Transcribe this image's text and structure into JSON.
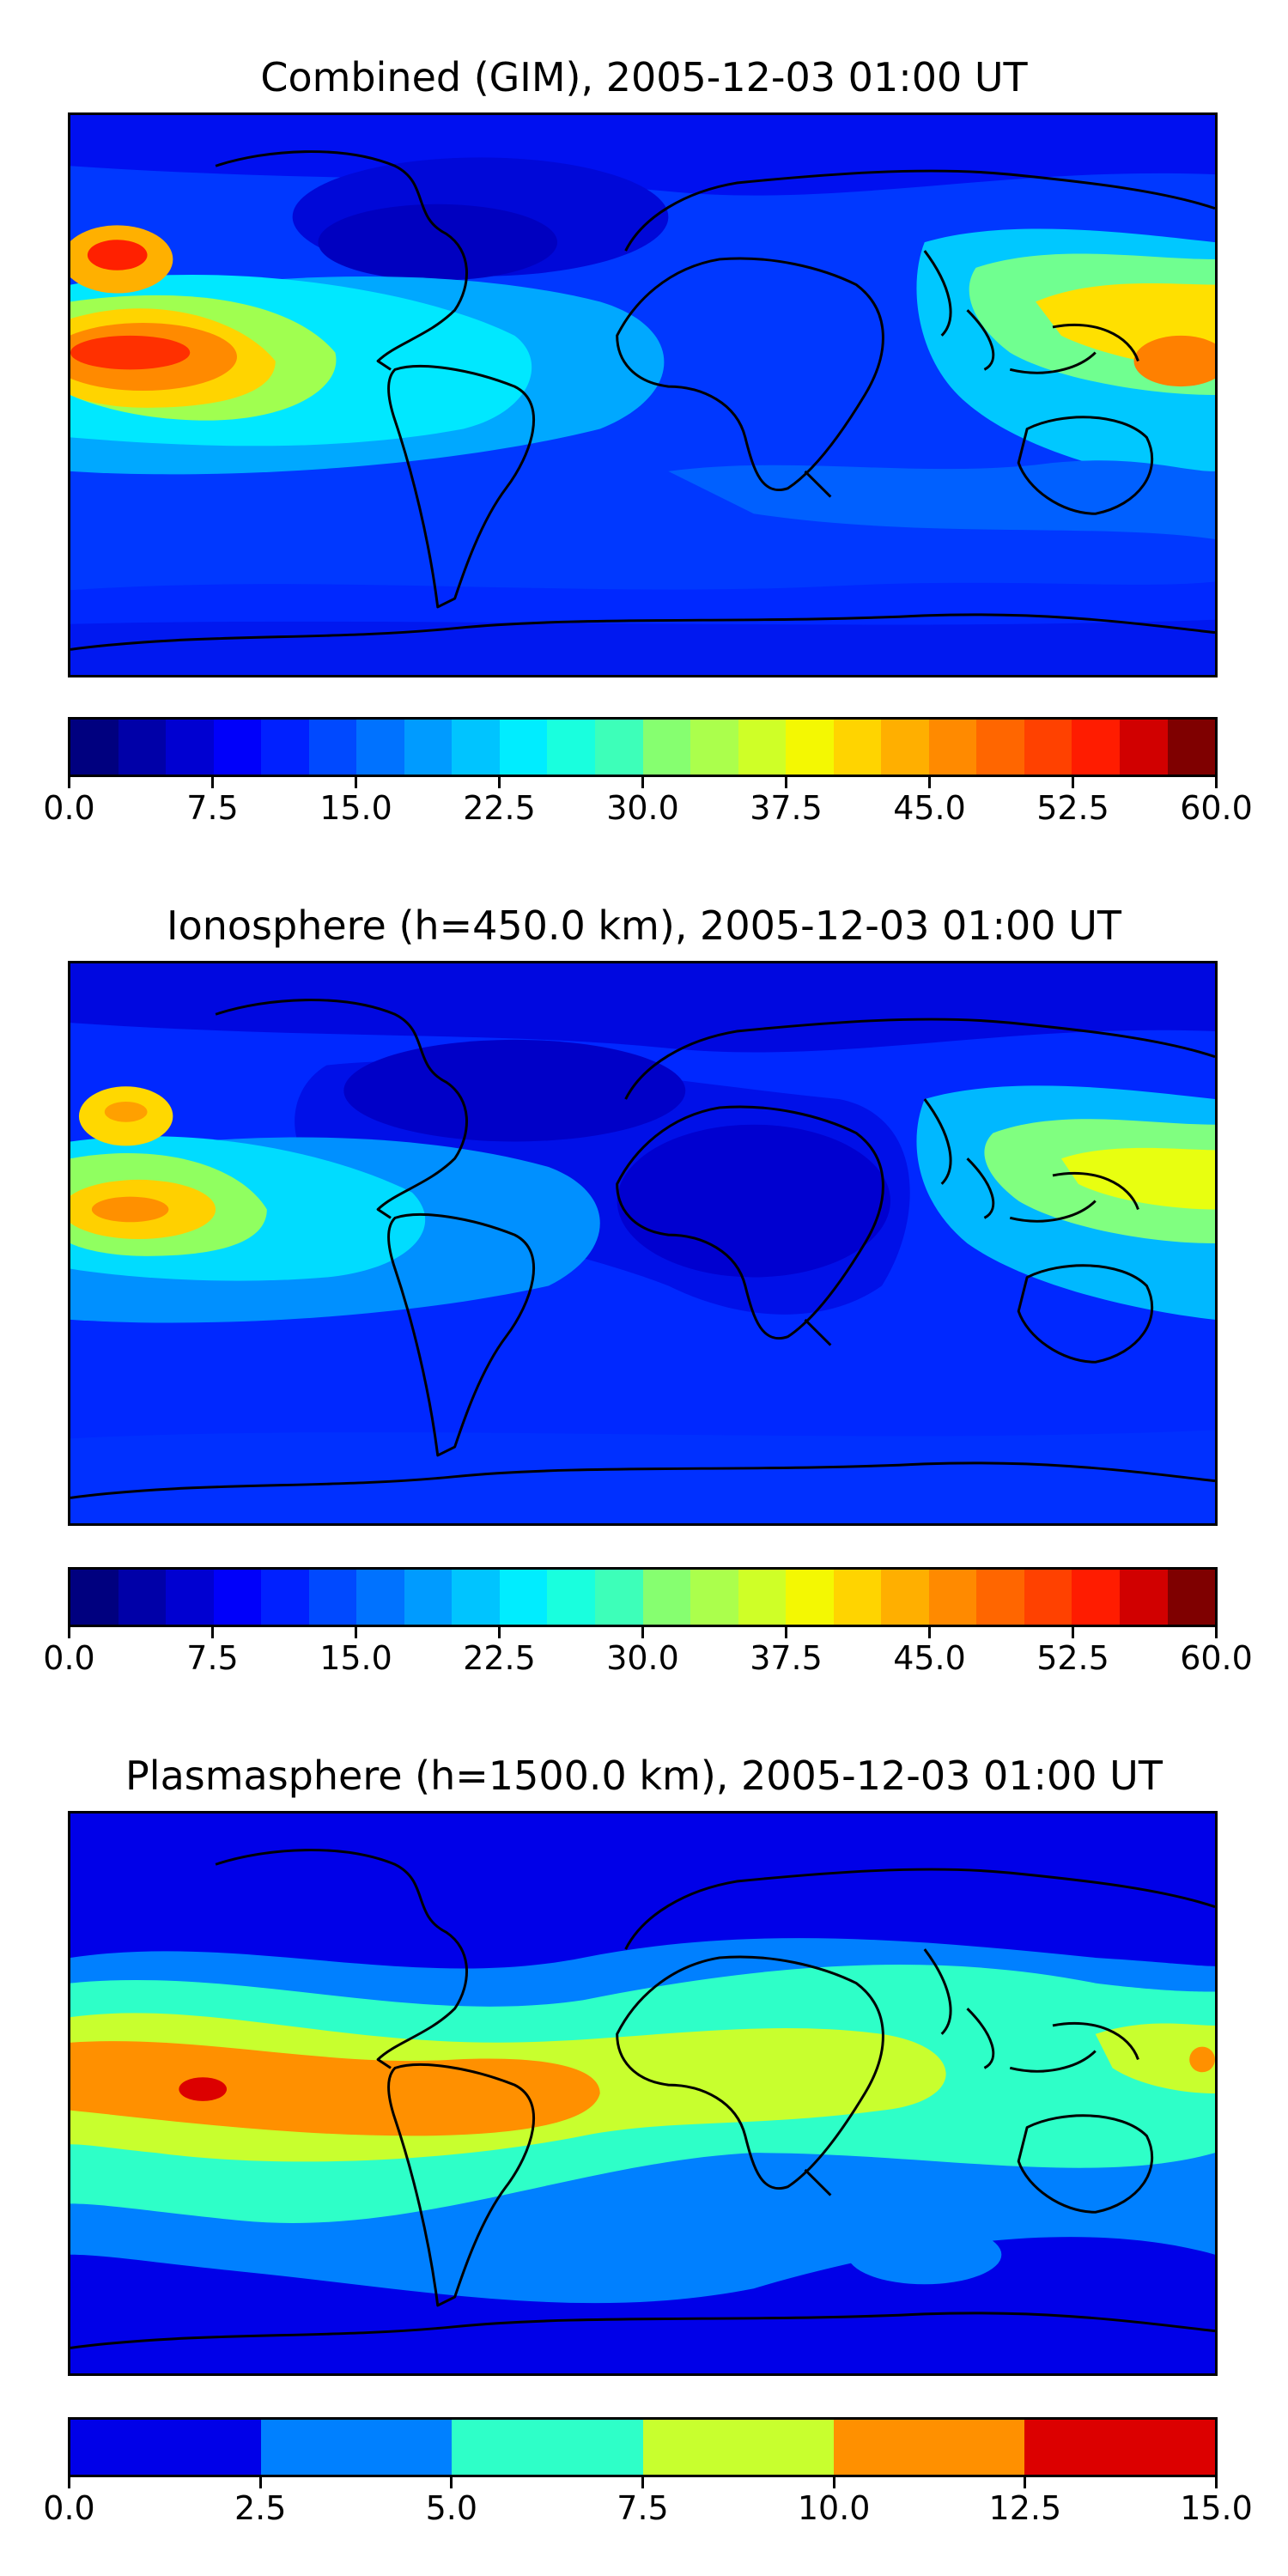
{
  "panels": [
    {
      "title": "Combined (GIM), 2005-12-03 01:00 UT",
      "colorbar": {
        "min": 0.0,
        "max": 60.0,
        "levels": 24,
        "ticks": [
          "0.0",
          "7.5",
          "15.0",
          "22.5",
          "30.0",
          "37.5",
          "45.0",
          "52.5",
          "60.0"
        ],
        "colors": [
          "#00007f",
          "#0000a8",
          "#0000d1",
          "#0000fa",
          "#0020ff",
          "#0049ff",
          "#0072ff",
          "#009bff",
          "#00c4ff",
          "#00edff",
          "#19ffde",
          "#3dffb9",
          "#62ff94",
          "#86ff70",
          "#abff4c",
          "#cfff27",
          "#f4f802",
          "#ffd400",
          "#ffaf00",
          "#ff8a00",
          "#ff6600",
          "#ff4100",
          "#ff1c00",
          "#d10000",
          "#7f0000"
        ]
      }
    },
    {
      "title": "Ionosphere  (h=450.0 km), 2005-12-03 01:00 UT",
      "colorbar": {
        "min": 0.0,
        "max": 60.0,
        "levels": 24,
        "ticks": [
          "0.0",
          "7.5",
          "15.0",
          "22.5",
          "30.0",
          "37.5",
          "45.0",
          "52.5",
          "60.0"
        ],
        "colors": [
          "#00007f",
          "#0000a8",
          "#0000d1",
          "#0000fa",
          "#0020ff",
          "#0049ff",
          "#0072ff",
          "#009bff",
          "#00c4ff",
          "#00edff",
          "#19ffde",
          "#3dffb9",
          "#62ff94",
          "#86ff70",
          "#abff4c",
          "#cfff27",
          "#f4f802",
          "#ffd400",
          "#ffaf00",
          "#ff8a00",
          "#ff6600",
          "#ff4100",
          "#ff1c00",
          "#d10000",
          "#7f0000"
        ]
      }
    },
    {
      "title": "Plasmasphere (h=1500.0 km), 2005-12-03 01:00 UT",
      "colorbar": {
        "min": 0.0,
        "max": 15.0,
        "levels": 6,
        "ticks": [
          "0.0",
          "2.5",
          "5.0",
          "7.5",
          "10.0",
          "12.5",
          "15.0"
        ],
        "colors": [
          "#0000e8",
          "#0080ff",
          "#2effc8",
          "#c8ff2e",
          "#ff9000",
          "#dc0000"
        ]
      }
    }
  ]
}
